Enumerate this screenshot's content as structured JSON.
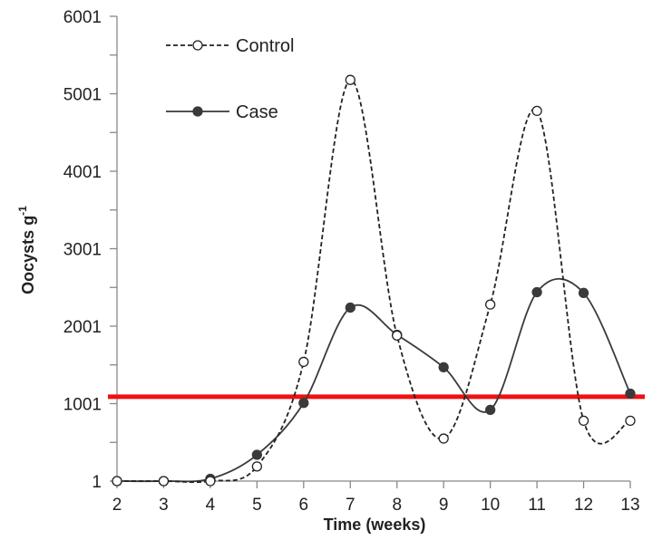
{
  "chart_data": {
    "type": "line",
    "xlabel": "Time (weeks)",
    "ylabel": "Oocysts g",
    "ylabel_sup": "-1",
    "x": [
      2,
      3,
      4,
      5,
      6,
      7,
      8,
      9,
      10,
      11,
      12,
      13
    ],
    "xlim": [
      2,
      13
    ],
    "ylim": [
      1,
      6001
    ],
    "yticks": [
      1,
      1001,
      2001,
      3001,
      4001,
      5001,
      6001
    ],
    "series": [
      {
        "name": "Control",
        "style": "dashed",
        "marker": "open-circle",
        "color": "#222222",
        "values": [
          1,
          1,
          1,
          190,
          1540,
          5180,
          1880,
          550,
          2280,
          4780,
          780,
          780
        ]
      },
      {
        "name": "Case",
        "style": "solid",
        "marker": "filled-circle",
        "color": "#3a3a3a",
        "values": [
          1,
          1,
          30,
          340,
          1010,
          2240,
          1890,
          1470,
          920,
          2440,
          2430,
          1130
        ]
      }
    ],
    "threshold": {
      "value": 1090,
      "color": "#ee1111"
    },
    "legend_position": "top-left",
    "grid": false
  }
}
